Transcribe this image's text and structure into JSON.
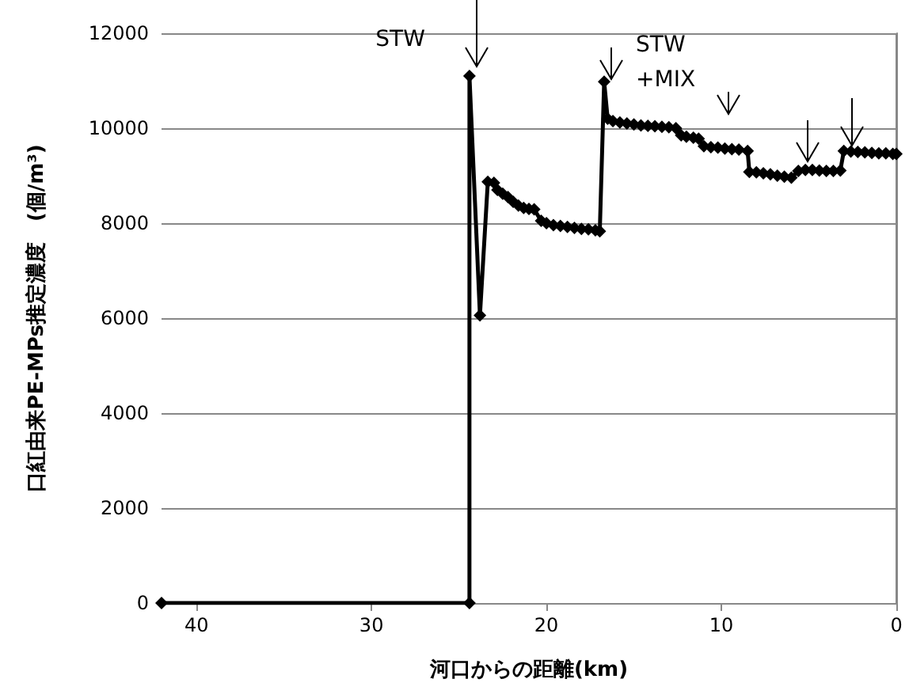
{
  "chart_data": {
    "type": "line",
    "xlabel": "河口からの距離(km)",
    "ylabel": "口紅由来PE-MPs推定濃度　(個/m³)",
    "xlim": [
      42,
      0
    ],
    "xticks": [
      40,
      30,
      20,
      10,
      0
    ],
    "ylim": [
      0,
      12000
    ],
    "yticks": [
      0,
      2000,
      4000,
      6000,
      8000,
      10000,
      12000
    ],
    "grid": "y",
    "marker": "diamond",
    "line_style": "solid",
    "annotations": [
      {
        "text": "STW",
        "x": 24.4,
        "y": 11100
      },
      {
        "text": "STW\n+MIX",
        "x": 16.7,
        "y": 10980
      }
    ],
    "series": [
      {
        "color": "#000000",
        "x": [
          42,
          24.4,
          24.4,
          23.8,
          23.35,
          23.0,
          22.8,
          22.5,
          22.2,
          21.9,
          21.6,
          21.3,
          21.0,
          20.7,
          20.3,
          20.0,
          19.6,
          19.2,
          18.8,
          18.4,
          18.0,
          17.6,
          17.2,
          16.95,
          16.7,
          16.5,
          16.2,
          15.8,
          15.4,
          15.0,
          14.6,
          14.2,
          13.8,
          13.4,
          13.0,
          12.6,
          12.3,
          12.0,
          11.6,
          11.3,
          11.0,
          10.6,
          10.2,
          9.8,
          9.4,
          9.0,
          8.5,
          8.4,
          8.0,
          7.6,
          7.2,
          6.8,
          6.4,
          6.0,
          5.6,
          5.2,
          4.8,
          4.4,
          4.0,
          3.6,
          3.2,
          3.0,
          2.6,
          2.2,
          1.8,
          1.4,
          1.0,
          0.6,
          0.2,
          0
        ],
        "values": [
          0,
          0,
          11100,
          6060,
          8870,
          8850,
          8700,
          8620,
          8550,
          8450,
          8370,
          8320,
          8300,
          8290,
          8050,
          8000,
          7960,
          7940,
          7920,
          7900,
          7880,
          7870,
          7850,
          7830,
          10980,
          10200,
          10150,
          10120,
          10100,
          10080,
          10060,
          10050,
          10040,
          10030,
          10020,
          10000,
          9850,
          9820,
          9800,
          9780,
          9620,
          9600,
          9590,
          9570,
          9560,
          9550,
          9520,
          9080,
          9070,
          9050,
          9030,
          9000,
          8980,
          8960,
          9100,
          9120,
          9120,
          9110,
          9100,
          9100,
          9110,
          9520,
          9510,
          9500,
          9490,
          9480,
          9470,
          9470,
          9460,
          9460
        ]
      }
    ]
  }
}
